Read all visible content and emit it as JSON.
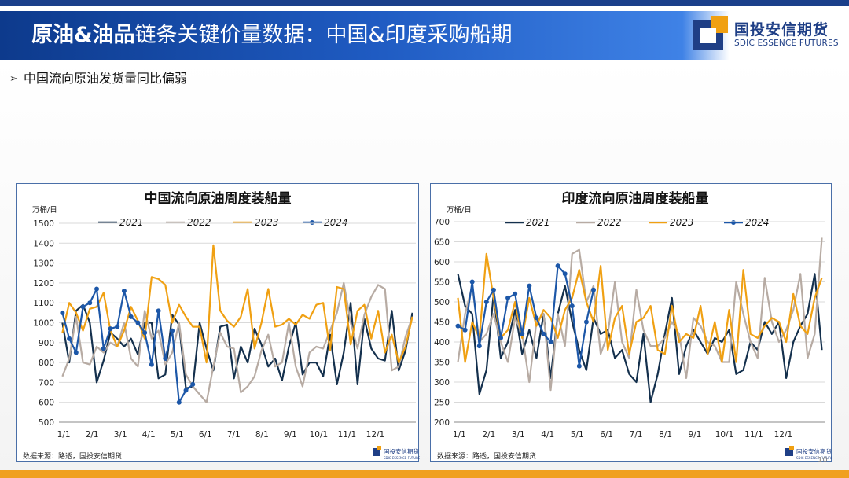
{
  "header": {
    "title_strong": "原油&油品",
    "title_rest": "链条关键价量数据：中国&印度采购船期"
  },
  "logo": {
    "name": "国投安信期货",
    "sub": "SDIC ESSENCE FUTURES",
    "mini_text": "国投安信期货",
    "mini_sub": "SDIC ESSENCE FUTURES"
  },
  "bullet": {
    "text": "中国流向原油发货量同比偏弱"
  },
  "page_number": "10",
  "colors": {
    "s2021": "#14304d",
    "s2022": "#b7aba3",
    "s2023": "#f0a012",
    "s2024": "#1c57a8",
    "border": "#4a6fa8"
  },
  "chart_data": [
    {
      "type": "line",
      "title": "中国流向原油周度装船量",
      "ylabel": "万桶/日",
      "ylim": [
        500,
        1500
      ],
      "yticks": [
        500,
        600,
        700,
        800,
        900,
        1000,
        1100,
        1200,
        1300,
        1400,
        1500
      ],
      "xlabels": [
        "1/1",
        "2/1",
        "3/1",
        "4/1",
        "5/1",
        "6/1",
        "7/1",
        "8/1",
        "9/1",
        "10/1",
        "11/1",
        "12/1"
      ],
      "weeks": 52,
      "source": "数据来源：路透，国投安信期货",
      "series": [
        {
          "name": "2021",
          "values": [
            1000,
            800,
            1060,
            1090,
            1000,
            700,
            810,
            950,
            920,
            880,
            920,
            840,
            1000,
            1000,
            720,
            740,
            1040,
            990,
            670,
            680,
            1000,
            870,
            760,
            980,
            990,
            720,
            880,
            800,
            970,
            890,
            780,
            820,
            710,
            880,
            1000,
            740,
            800,
            800,
            730,
            940,
            690,
            850,
            1100,
            690,
            1020,
            870,
            820,
            810,
            1060,
            760,
            860,
            1050
          ]
        },
        {
          "name": "2022",
          "values": [
            730,
            820,
            1030,
            800,
            790,
            880,
            850,
            900,
            880,
            1000,
            820,
            780,
            1060,
            920,
            960,
            790,
            850,
            1000,
            740,
            680,
            640,
            600,
            780,
            950,
            880,
            870,
            650,
            680,
            730,
            860,
            940,
            780,
            800,
            1000,
            780,
            680,
            850,
            880,
            870,
            960,
            1050,
            1200,
            1000,
            870,
            1040,
            1130,
            1190,
            1170,
            760,
            780,
            930,
            1030
          ]
        },
        {
          "name": "2023",
          "values": [
            950,
            1100,
            1050,
            960,
            1070,
            1080,
            1150,
            960,
            880,
            960,
            1080,
            1010,
            920,
            1230,
            1220,
            1190,
            1000,
            1090,
            1030,
            980,
            980,
            800,
            1390,
            1060,
            1010,
            980,
            1030,
            1170,
            870,
            1000,
            1170,
            980,
            990,
            1020,
            990,
            1040,
            1020,
            1090,
            1100,
            860,
            1180,
            1170,
            890,
            1060,
            1090,
            920,
            1060,
            850,
            940,
            800,
            880,
            1030
          ]
        },
        {
          "name": "2024",
          "values": [
            1050,
            920,
            850,
            1080,
            1100,
            1170,
            870,
            970,
            980,
            1160,
            1030,
            1000,
            950,
            790,
            1060,
            820,
            960,
            600,
            660,
            690
          ]
        }
      ]
    },
    {
      "type": "line",
      "title": "印度流向原油周度装船量",
      "ylabel": "万桶/日",
      "ylim": [
        200,
        700
      ],
      "yticks": [
        200,
        250,
        300,
        350,
        400,
        450,
        500,
        550,
        600,
        650,
        700
      ],
      "xlabels": [
        "1/1",
        "2/1",
        "3/1",
        "4/1",
        "5/1",
        "6/1",
        "7/1",
        "8/1",
        "9/1",
        "10/1",
        "11/1",
        "12/1"
      ],
      "weeks": 52,
      "source": "数据来源：路透，国投安信期货",
      "series": [
        {
          "name": "2021",
          "values": [
            570,
            490,
            470,
            270,
            330,
            520,
            360,
            400,
            480,
            370,
            430,
            360,
            470,
            310,
            470,
            540,
            450,
            380,
            330,
            460,
            420,
            430,
            360,
            380,
            320,
            300,
            420,
            250,
            320,
            420,
            510,
            320,
            390,
            430,
            400,
            370,
            410,
            400,
            430,
            320,
            330,
            400,
            380,
            450,
            420,
            450,
            310,
            400,
            440,
            470,
            570,
            380
          ]
        },
        {
          "name": "2022",
          "values": [
            350,
            470,
            540,
            400,
            420,
            470,
            400,
            350,
            460,
            420,
            300,
            450,
            470,
            280,
            470,
            390,
            620,
            630,
            500,
            540,
            370,
            420,
            550,
            400,
            360,
            530,
            430,
            390,
            390,
            410,
            450,
            420,
            310,
            460,
            440,
            400,
            390,
            350,
            350,
            550,
            470,
            400,
            360,
            560,
            450,
            400,
            430,
            480,
            570,
            360,
            420,
            660
          ]
        },
        {
          "name": "2023",
          "values": [
            510,
            350,
            450,
            410,
            620,
            510,
            410,
            430,
            500,
            410,
            510,
            440,
            480,
            460,
            410,
            480,
            510,
            580,
            500,
            450,
            590,
            380,
            460,
            490,
            370,
            450,
            460,
            490,
            380,
            370,
            490,
            400,
            420,
            410,
            490,
            370,
            450,
            350,
            480,
            350,
            580,
            420,
            410,
            440,
            460,
            450,
            400,
            520,
            440,
            420,
            510,
            560
          ]
        },
        {
          "name": "2024",
          "values": [
            440,
            430,
            550,
            390,
            500,
            530,
            410,
            510,
            520,
            420,
            540,
            460,
            420,
            400,
            590,
            570,
            490,
            340,
            450,
            530
          ]
        }
      ]
    }
  ]
}
